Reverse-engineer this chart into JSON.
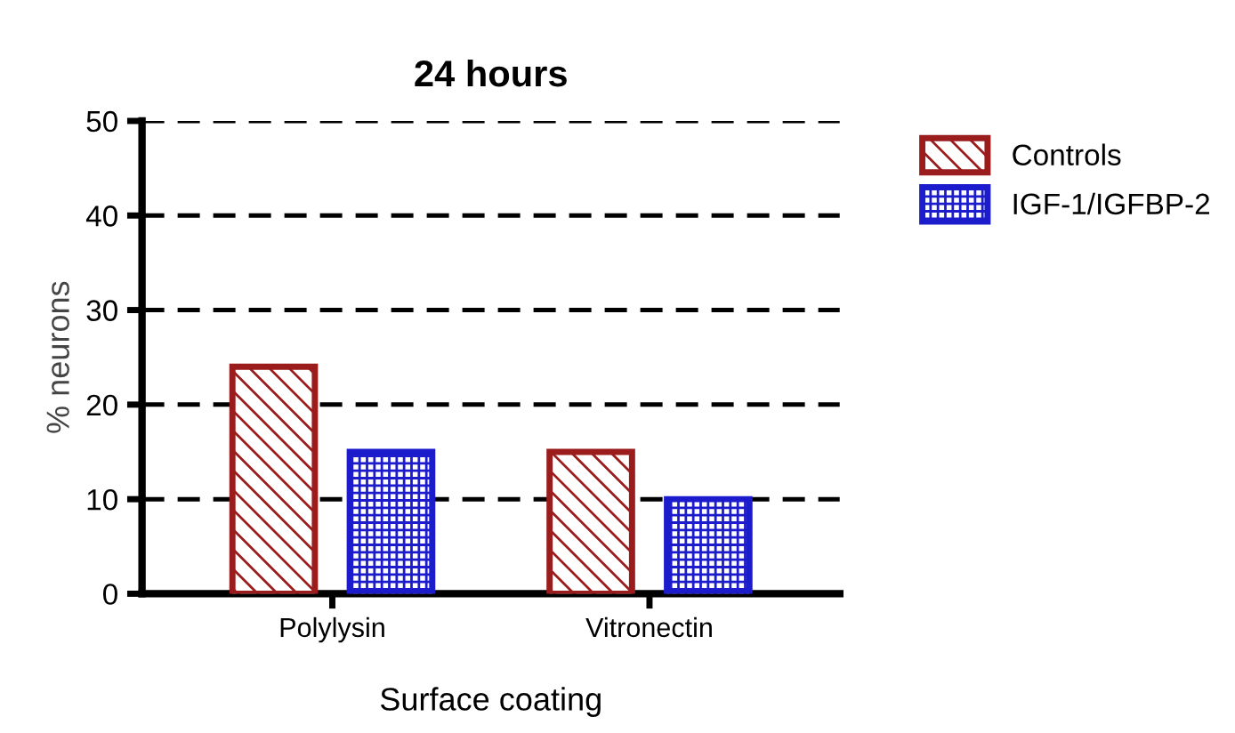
{
  "chart_data": {
    "type": "bar",
    "title": "24 hours",
    "xlabel": "Surface coating",
    "ylabel": "% neurons",
    "categories": [
      "Polylysin",
      "Vitronectin"
    ],
    "series": [
      {
        "name": "Controls",
        "color": "#9b1c1c",
        "values": [
          24,
          15
        ]
      },
      {
        "name": "IGF-1/IGFBP-2",
        "color": "#1c1ccc",
        "values": [
          15,
          10
        ]
      }
    ],
    "ylim": [
      0,
      50
    ],
    "yticks": [
      0,
      10,
      20,
      30,
      40,
      50
    ],
    "grid": "y",
    "legend": "top right"
  }
}
